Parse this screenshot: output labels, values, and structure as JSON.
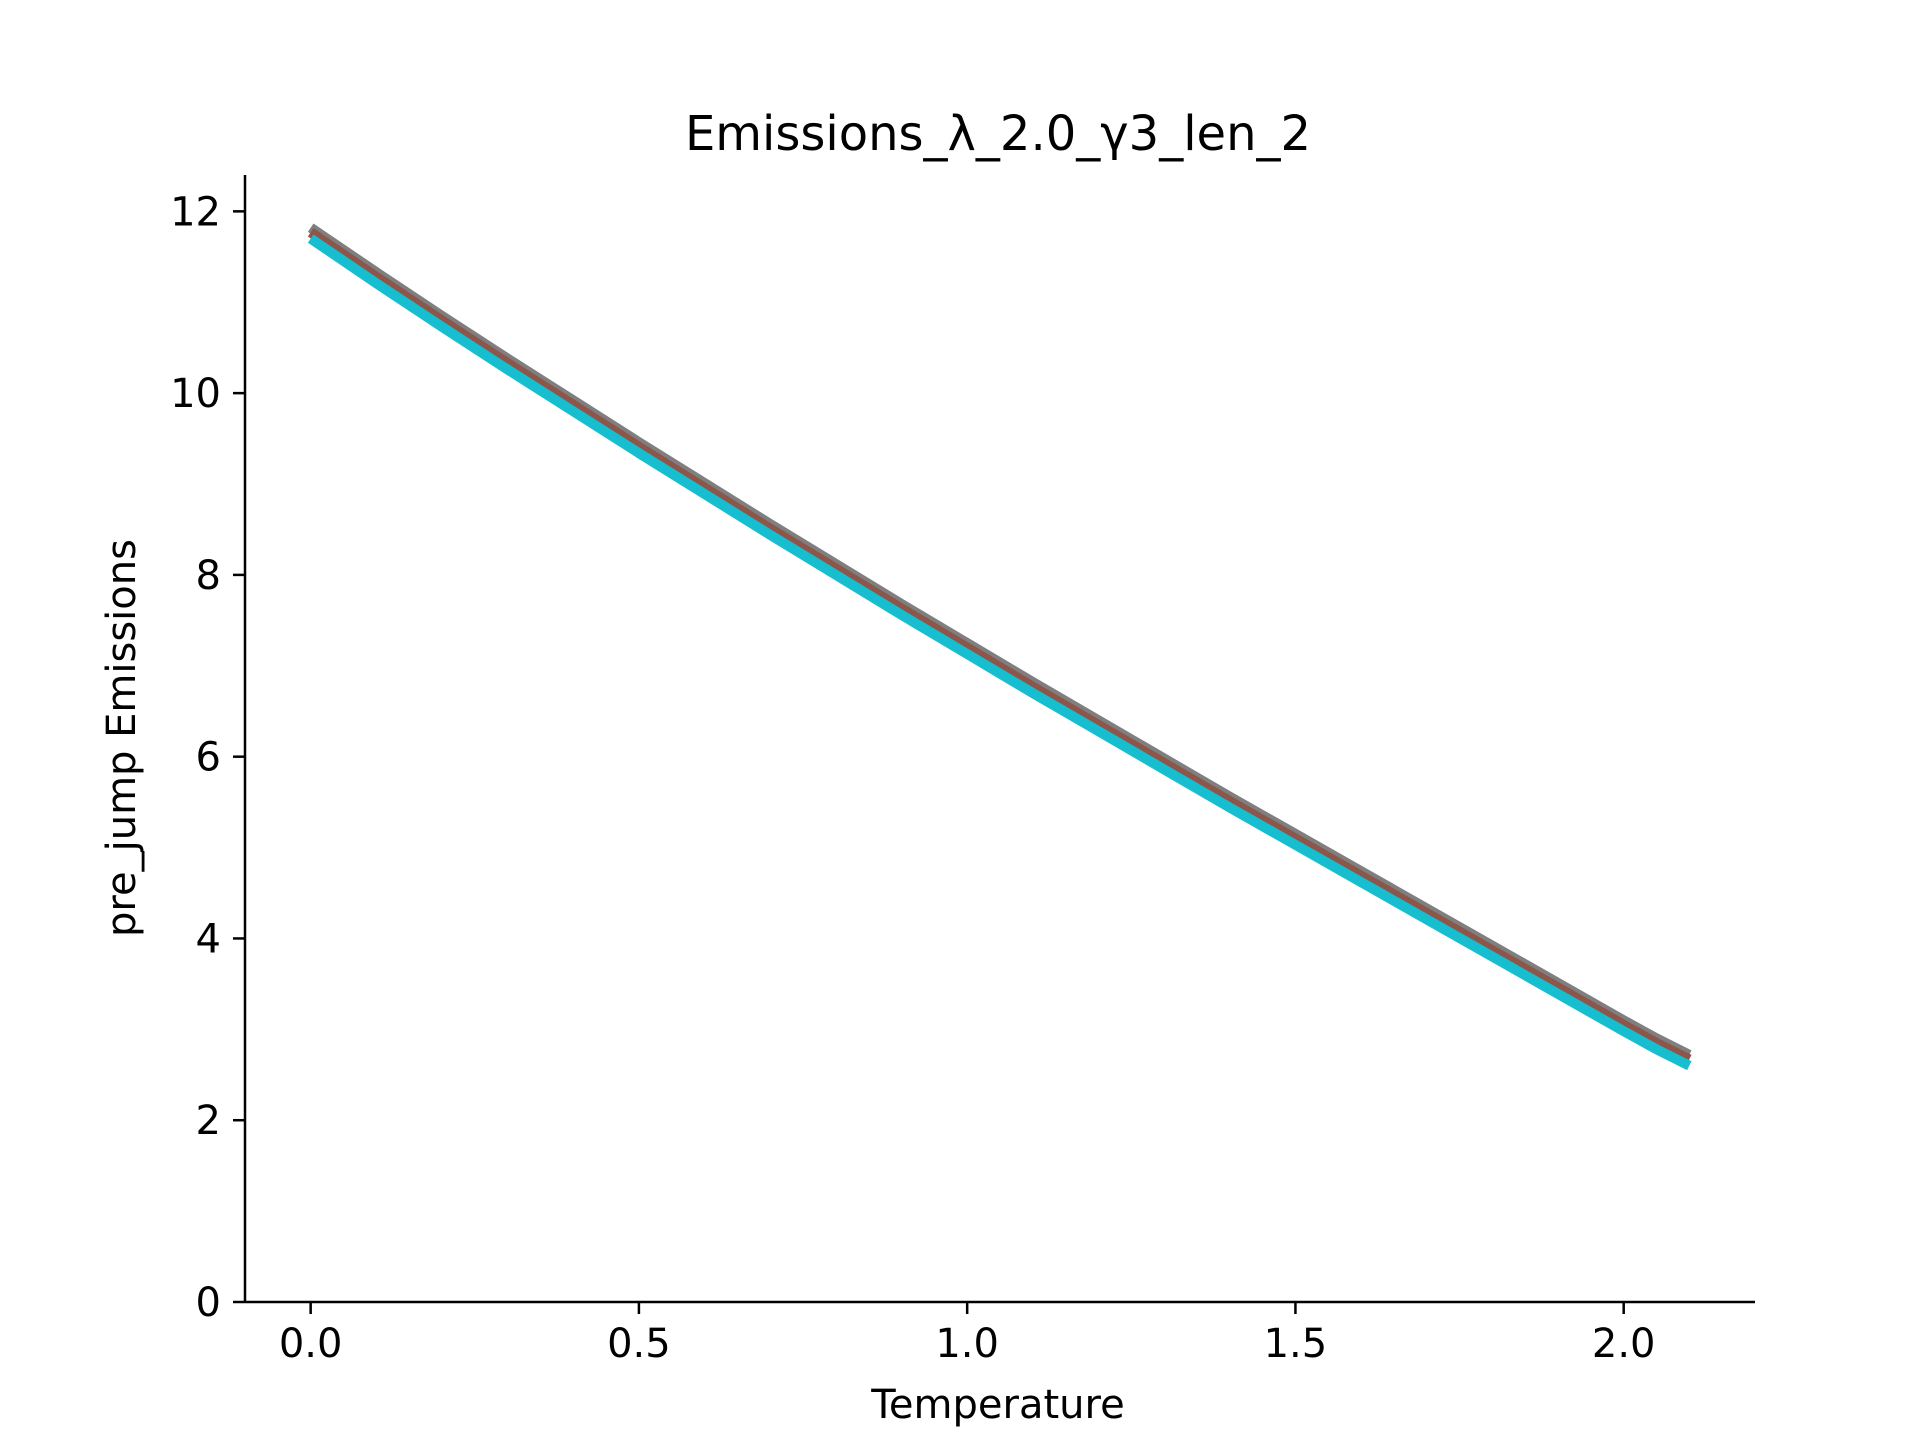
{
  "chart_data": {
    "type": "line",
    "title": "Emissions_λ_2.0_γ3_len_2",
    "xlabel": "Temperature",
    "ylabel": "pre_jump Emissions",
    "xlim": [
      -0.1,
      2.2
    ],
    "ylim": [
      0,
      12.4
    ],
    "xticks": [
      0.0,
      0.5,
      1.0,
      1.5,
      2.0
    ],
    "xtick_labels": [
      "0.0",
      "0.5",
      "1.0",
      "1.5",
      "2.0"
    ],
    "yticks": [
      0,
      2,
      4,
      6,
      8,
      10,
      12
    ],
    "ytick_labels": [
      "0",
      "2",
      "4",
      "6",
      "8",
      "10",
      "12"
    ],
    "grid": false,
    "series": [
      {
        "color": "#7f7f7f",
        "x": [
          0.0,
          0.1,
          0.2,
          0.3,
          0.4,
          0.5,
          0.6,
          0.7,
          0.8,
          0.9,
          1.0,
          1.1,
          1.2,
          1.3,
          1.4,
          1.5,
          1.6,
          1.7,
          1.8,
          1.9,
          2.0,
          2.05,
          2.1
        ],
        "y": [
          11.82,
          11.33,
          10.85,
          10.38,
          9.92,
          9.46,
          9.01,
          8.56,
          8.12,
          7.68,
          7.25,
          6.82,
          6.4,
          5.98,
          5.56,
          5.15,
          4.74,
          4.33,
          3.92,
          3.51,
          3.1,
          2.9,
          2.72
        ]
      },
      {
        "color": "#8c564b",
        "x": [
          0.0,
          0.1,
          0.2,
          0.3,
          0.4,
          0.5,
          0.6,
          0.7,
          0.8,
          0.9,
          1.0,
          1.1,
          1.2,
          1.3,
          1.4,
          1.5,
          1.6,
          1.7,
          1.8,
          1.9,
          2.0,
          2.05,
          2.1
        ],
        "y": [
          11.77,
          11.28,
          10.8,
          10.33,
          9.87,
          9.41,
          8.96,
          8.51,
          8.07,
          7.63,
          7.2,
          6.77,
          6.35,
          5.93,
          5.51,
          5.1,
          4.69,
          4.28,
          3.87,
          3.46,
          3.05,
          2.85,
          2.67
        ]
      },
      {
        "color": "#17becf",
        "x": [
          0.0,
          0.1,
          0.2,
          0.3,
          0.4,
          0.5,
          0.6,
          0.7,
          0.8,
          0.9,
          1.0,
          1.1,
          1.2,
          1.3,
          1.4,
          1.5,
          1.6,
          1.7,
          1.8,
          1.9,
          2.0,
          2.05,
          2.1
        ],
        "y": [
          11.7,
          11.21,
          10.73,
          10.26,
          9.8,
          9.34,
          8.89,
          8.44,
          8.0,
          7.56,
          7.13,
          6.7,
          6.28,
          5.86,
          5.44,
          5.03,
          4.62,
          4.21,
          3.8,
          3.39,
          2.98,
          2.78,
          2.6
        ]
      }
    ]
  }
}
